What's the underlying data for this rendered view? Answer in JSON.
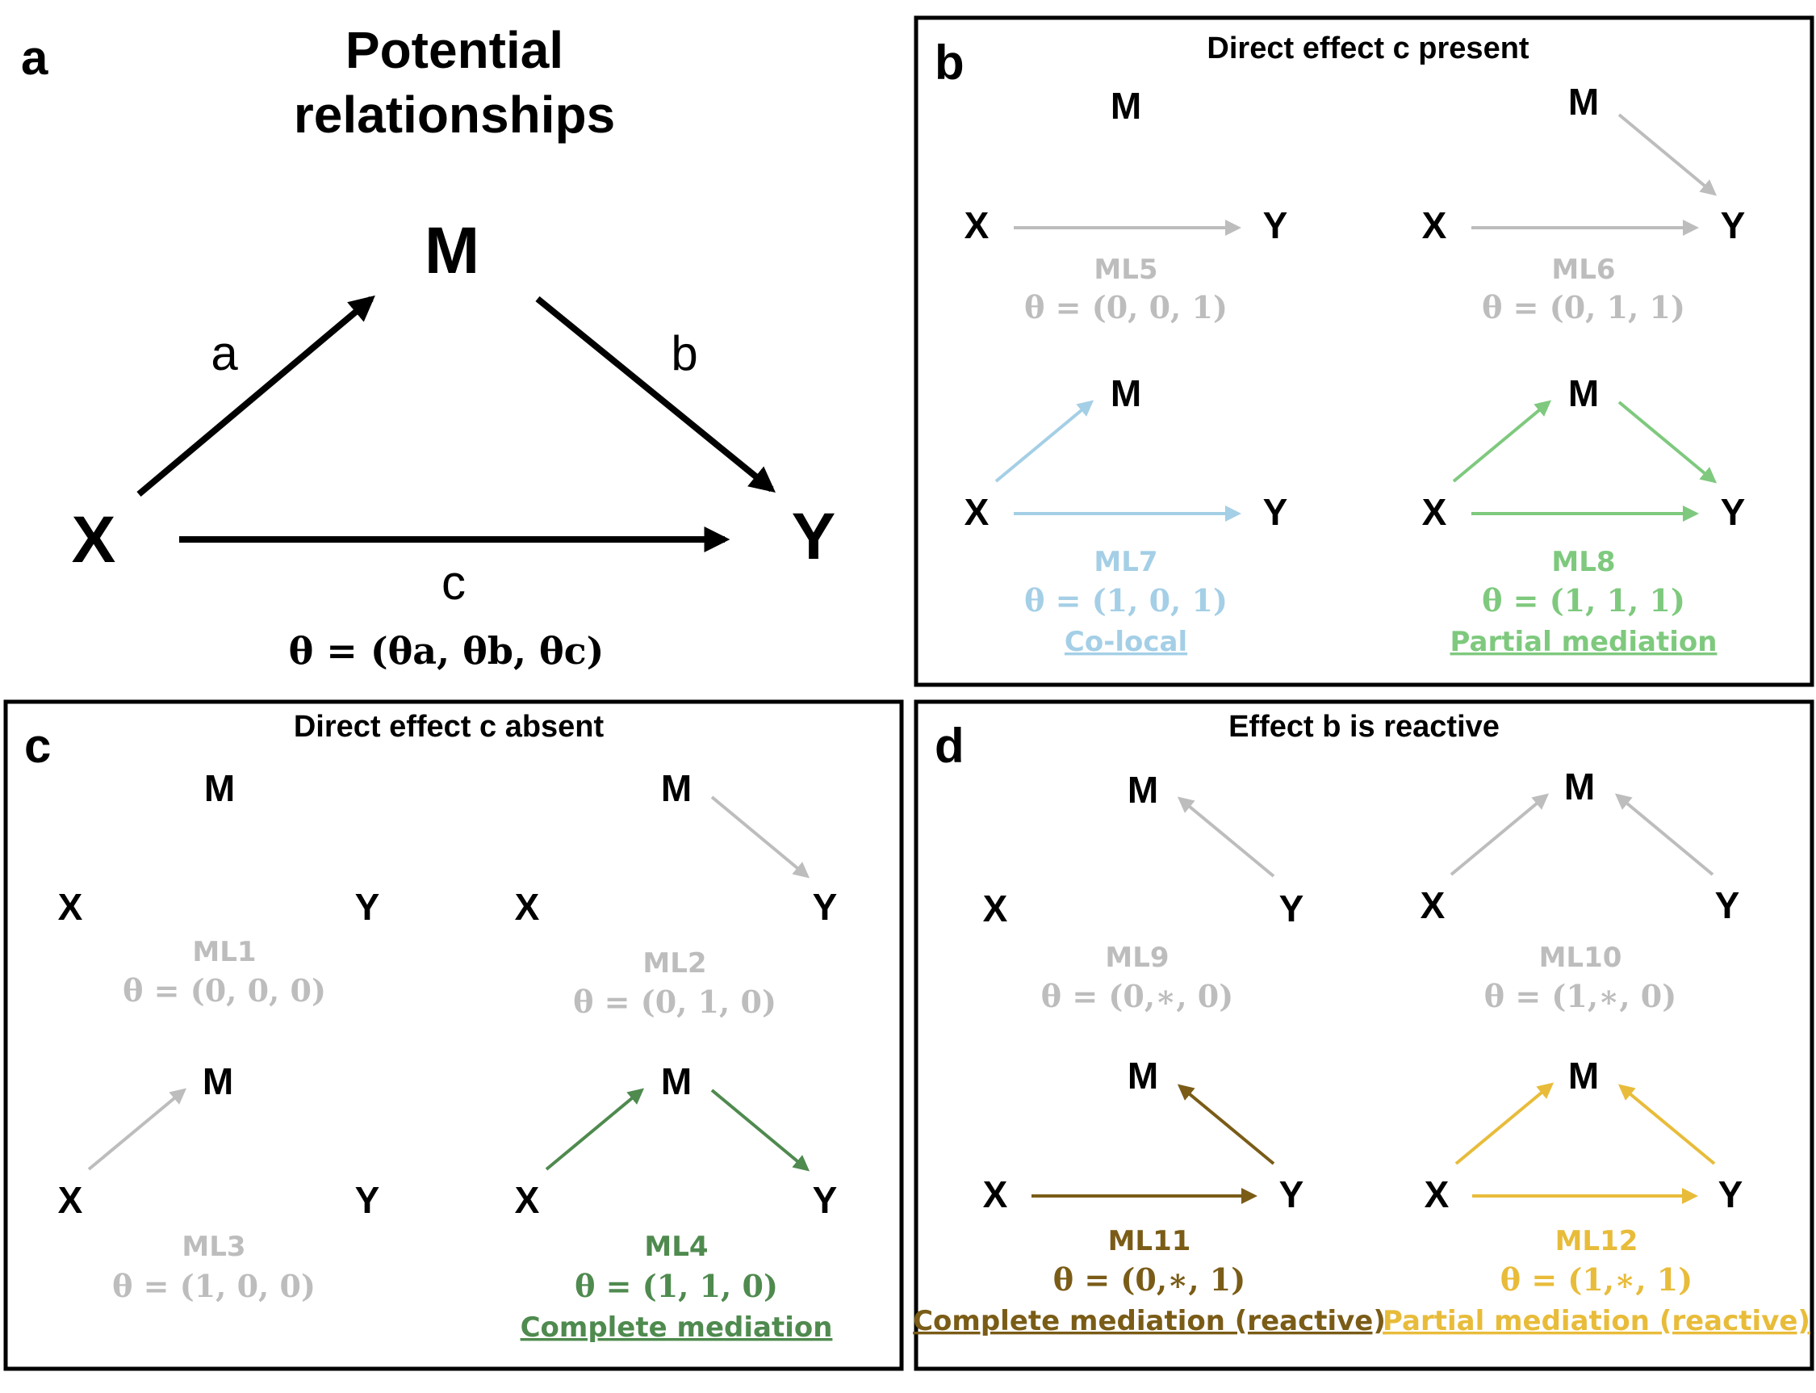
{
  "colors": {
    "black": "#000000",
    "gray": "#bdbdbd",
    "lightblue": "#a4cfe6",
    "green": "#7ec97e",
    "darkgreen": "#4f8a4f",
    "brown": "#7a5c17",
    "gold": "#e8bc3a"
  },
  "panel_a": {
    "letter": "a",
    "title_line1": "Potential",
    "title_line2": "relationships",
    "node_m": "M",
    "node_x": "X",
    "node_y": "Y",
    "edge_a": "a",
    "edge_b": "b",
    "edge_c": "c",
    "theta_formula": "θ = (θa, θb, θc)"
  },
  "panel_b": {
    "letter": "b",
    "title": "Direct effect c present",
    "models": [
      {
        "id": "ML5",
        "theta": "θ = (0, 0, 1)",
        "label": ""
      },
      {
        "id": "ML6",
        "theta": "θ = (0, 1, 1)",
        "label": ""
      },
      {
        "id": "ML7",
        "theta": "θ = (1, 0, 1)",
        "label": "Co-local"
      },
      {
        "id": "ML8",
        "theta": "θ = (1, 1, 1)",
        "label": "Partial mediation"
      }
    ]
  },
  "panel_c": {
    "letter": "c",
    "title": "Direct effect c absent",
    "models": [
      {
        "id": "ML1",
        "theta": "θ = (0, 0, 0)",
        "label": ""
      },
      {
        "id": "ML2",
        "theta": "θ = (0, 1, 0)",
        "label": ""
      },
      {
        "id": "ML3",
        "theta": "θ = (1, 0, 0)",
        "label": ""
      },
      {
        "id": "ML4",
        "theta": "θ = (1, 1, 0)",
        "label": "Complete mediation"
      }
    ]
  },
  "panel_d": {
    "letter": "d",
    "title": "Effect b is reactive",
    "models": [
      {
        "id": "ML9",
        "theta": "θ = (0,∗, 0)",
        "label": ""
      },
      {
        "id": "ML10",
        "theta": "θ = (1,∗, 0)",
        "label": ""
      },
      {
        "id": "ML11",
        "theta": "θ = (0,∗, 1)",
        "label": "Complete mediation (reactive)"
      },
      {
        "id": "ML12",
        "theta": "θ = (1,∗, 1)",
        "label": "Partial mediation (reactive)"
      }
    ]
  },
  "nodes": {
    "m": "M",
    "x": "X",
    "y": "Y"
  }
}
